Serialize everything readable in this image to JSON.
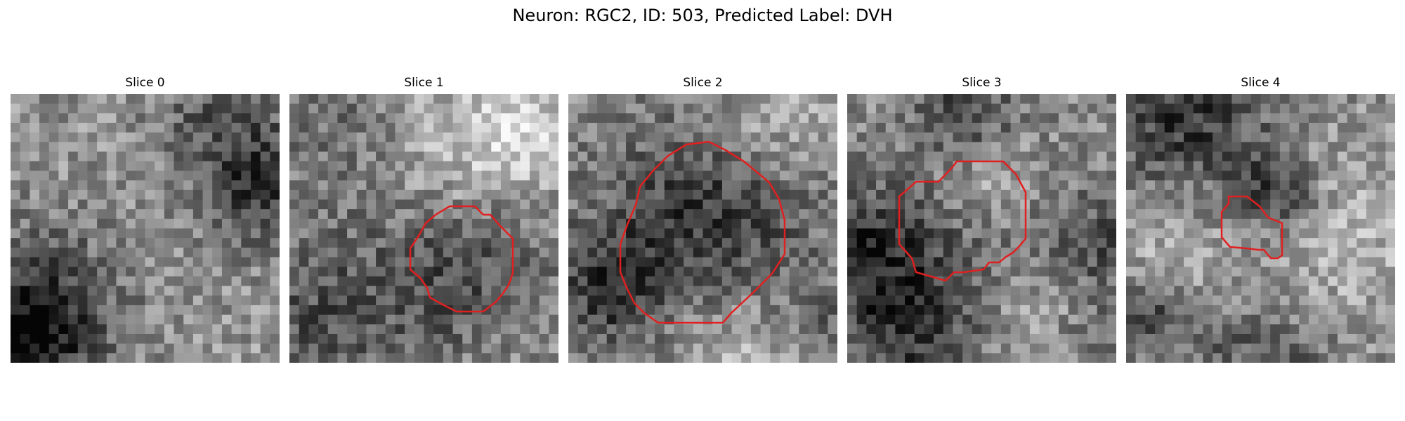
{
  "figure": {
    "title": "Neuron: RGC2, ID: 503, Predicted Label: DVH"
  },
  "panels": [
    {
      "title": "Slice 0",
      "has_contour": false
    },
    {
      "title": "Slice 1",
      "has_contour": true
    },
    {
      "title": "Slice 2",
      "has_contour": true
    },
    {
      "title": "Slice 3",
      "has_contour": true
    },
    {
      "title": "Slice 4",
      "has_contour": true
    }
  ],
  "colors": {
    "contour": "#e02020",
    "background": "#ffffff"
  }
}
